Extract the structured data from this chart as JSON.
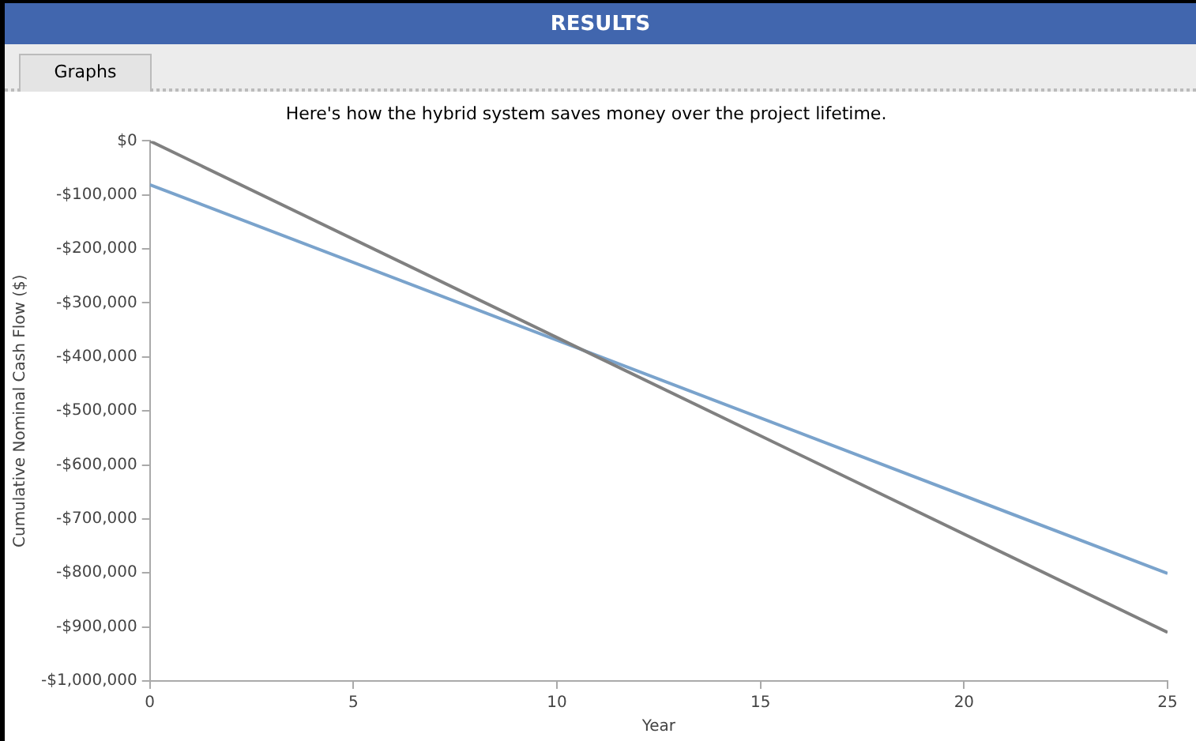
{
  "chart_data": {
    "type": "line",
    "title": "Here's how the hybrid system saves money over the project lifetime.",
    "xlabel": "Year",
    "ylabel": "Cumulative Nominal Cash Flow ($)",
    "annotations": [
      "RESULTS",
      "Graphs"
    ],
    "x": [
      0,
      25
    ],
    "series": [
      {
        "color": "#808080",
        "values": [
          0,
          -910000
        ]
      },
      {
        "color": "#7aa3cc",
        "values": [
          -81000,
          -801000
        ]
      }
    ],
    "xlim": [
      0,
      25
    ],
    "xticks": [
      0,
      5,
      10,
      15,
      20,
      25
    ],
    "ylim": [
      -1000000,
      0
    ],
    "yticks": [
      {
        "value": -1000000,
        "label": "-$1,000,000"
      },
      {
        "value": -900000,
        "label": "-$900,000"
      },
      {
        "value": -800000,
        "label": "-$800,000"
      },
      {
        "value": -700000,
        "label": "-$700,000"
      },
      {
        "value": -600000,
        "label": "-$600,000"
      },
      {
        "value": -500000,
        "label": "-$500,000"
      },
      {
        "value": -400000,
        "label": "-$400,000"
      },
      {
        "value": -300000,
        "label": "-$300,000"
      },
      {
        "value": -200000,
        "label": "-$200,000"
      },
      {
        "value": -100000,
        "label": "-$100,000"
      },
      {
        "value": 0,
        "label": "$0"
      }
    ],
    "grid": false,
    "legend": false,
    "marker": "none",
    "line_style": "solid"
  }
}
